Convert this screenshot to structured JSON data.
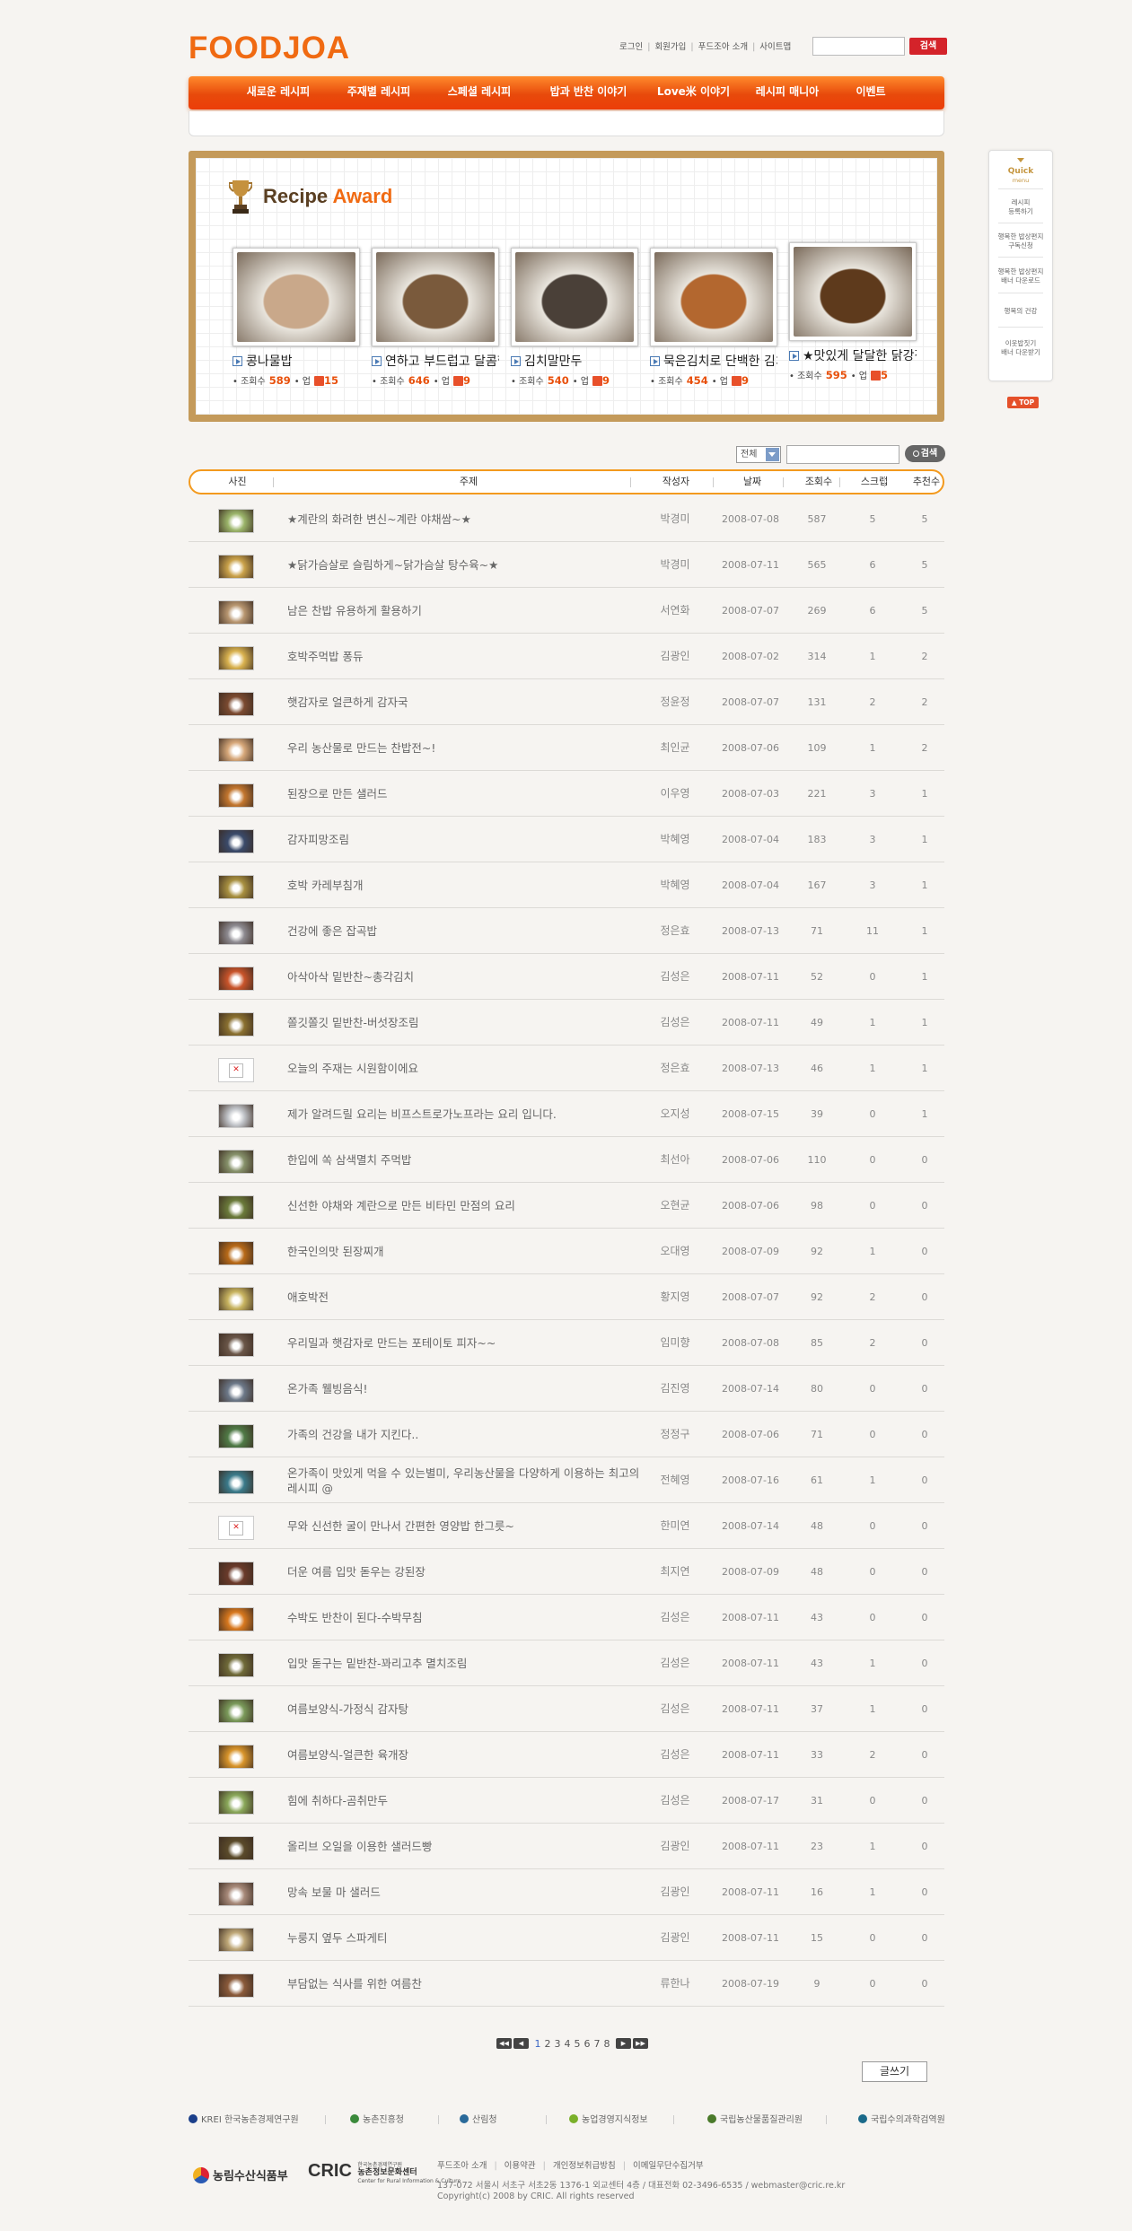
{
  "header": {
    "logo": "FOODJOA",
    "links": [
      "로그인",
      "회원가입",
      "푸드조아 소개",
      "사이트맵"
    ],
    "search_button": "검색"
  },
  "nav": {
    "items": [
      "새로운 레시피",
      "주재별 레시피",
      "스페셜 레시피",
      "밥과 반찬 이야기",
      "Love米 이야기",
      "레시피 매니아",
      "이벤트"
    ]
  },
  "award": {
    "title_part1": "Recipe",
    "title_part2": "Award",
    "views_label": "조회수",
    "scrap_label": "업",
    "items": [
      {
        "title": "콩나물밥",
        "views": "589",
        "scraps": "15",
        "color": "#c9a88a"
      },
      {
        "title": "연하고 부드럽고 달콤한 소갈비찜",
        "views": "646",
        "scraps": "9",
        "color": "#7a5a3c"
      },
      {
        "title": "김치말만두",
        "views": "540",
        "scraps": "9",
        "color": "#4a4038"
      },
      {
        "title": "묵은김치로 단백한 김치찌개",
        "views": "454",
        "scraps": "9",
        "color": "#b3672f"
      },
      {
        "title": "★맛있게 달달한 닭강정",
        "views": "595",
        "scraps": "5",
        "color": "#5e3a1c"
      }
    ]
  },
  "quick": {
    "title_line1": "Quick",
    "title_line2": "menu",
    "items": [
      "레시피\n등록하기",
      "행복한 밥상편지\n구독신청",
      "행복한 밥상편지\n배너 다운로드",
      "행복의 건강",
      "이웃밥짓기\n배너 다운받기"
    ],
    "top_label": "▲ TOP"
  },
  "search": {
    "select_value": "전체",
    "button": "검색"
  },
  "table": {
    "headers": [
      "사진",
      "주제",
      "작성자",
      "날짜",
      "조회수",
      "스크랩",
      "추천수"
    ],
    "rows": [
      {
        "subject": "★계란의 화려한 변신~계란 야채쌈~★",
        "author": "박경미",
        "date": "2008-07-08",
        "views": "587",
        "scraps": "5",
        "recs": "5",
        "thumb": "#9bb56a"
      },
      {
        "subject": "★닭가슴살로 슬림하게~닭가슴살 탕수육~★",
        "author": "박경미",
        "date": "2008-07-11",
        "views": "565",
        "scraps": "6",
        "recs": "5",
        "thumb": "#caa24a"
      },
      {
        "subject": "남은 찬밥 유용하게 활용하기",
        "author": "서연화",
        "date": "2008-07-07",
        "views": "269",
        "scraps": "6",
        "recs": "5",
        "thumb": "#b89670"
      },
      {
        "subject": "호박주먹밥 퐁듀",
        "author": "김광인",
        "date": "2008-07-02",
        "views": "314",
        "scraps": "1",
        "recs": "2",
        "thumb": "#d9b24f"
      },
      {
        "subject": "햇감자로 얼큰하게 감자국",
        "author": "정윤정",
        "date": "2008-07-07",
        "views": "131",
        "scraps": "2",
        "recs": "2",
        "thumb": "#7b4a30"
      },
      {
        "subject": "우리 농산물로 만드는 찬밥전~!",
        "author": "최인균",
        "date": "2008-07-06",
        "views": "109",
        "scraps": "1",
        "recs": "2",
        "thumb": "#d7a87a"
      },
      {
        "subject": "된장으로 만든 샐러드",
        "author": "이우영",
        "date": "2008-07-03",
        "views": "221",
        "scraps": "3",
        "recs": "1",
        "thumb": "#c3762e"
      },
      {
        "subject": "감자피망조림",
        "author": "박혜영",
        "date": "2008-07-04",
        "views": "183",
        "scraps": "3",
        "recs": "1",
        "thumb": "#3a4a6a"
      },
      {
        "subject": "호박 카레부침개",
        "author": "박혜영",
        "date": "2008-07-04",
        "views": "167",
        "scraps": "3",
        "recs": "1",
        "thumb": "#a89040"
      },
      {
        "subject": "건강에 좋은 잡곡밥",
        "author": "정은효",
        "date": "2008-07-13",
        "views": "71",
        "scraps": "11",
        "recs": "1",
        "thumb": "#8d8a90"
      },
      {
        "subject": "아삭아삭 밑반찬~총각김치",
        "author": "김성은",
        "date": "2008-07-11",
        "views": "52",
        "scraps": "0",
        "recs": "1",
        "thumb": "#c9542a"
      },
      {
        "subject": "쫄깃쫄깃 밑반찬-버섯장조림",
        "author": "김성은",
        "date": "2008-07-11",
        "views": "49",
        "scraps": "1",
        "recs": "1",
        "thumb": "#8a7030"
      },
      {
        "subject": "오늘의 주재는 시원함이에요",
        "author": "정은효",
        "date": "2008-07-13",
        "views": "46",
        "scraps": "1",
        "recs": "1",
        "thumb": "broken"
      },
      {
        "subject": "제가 알려드릴 요리는 비프스트로가노프라는 요리 입니다.",
        "author": "오지성",
        "date": "2008-07-15",
        "views": "39",
        "scraps": "0",
        "recs": "1",
        "thumb": "#c0c3c8"
      },
      {
        "subject": "한입에 쏙 삼색멸치 주먹밥",
        "author": "최선아",
        "date": "2008-07-06",
        "views": "110",
        "scraps": "0",
        "recs": "0",
        "thumb": "#86916a"
      },
      {
        "subject": "신선한 야채와 계란으로 만든 비타민 만점의 요리",
        "author": "오현균",
        "date": "2008-07-06",
        "views": "98",
        "scraps": "0",
        "recs": "0",
        "thumb": "#6a7a3a"
      },
      {
        "subject": "한국인의맛 된장찌개",
        "author": "오대영",
        "date": "2008-07-09",
        "views": "92",
        "scraps": "1",
        "recs": "0",
        "thumb": "#b86a18"
      },
      {
        "subject": "애호박전",
        "author": "황지영",
        "date": "2008-07-07",
        "views": "92",
        "scraps": "2",
        "recs": "0",
        "thumb": "#c8b460"
      },
      {
        "subject": "우리밀과 햇감자로 만드는 포테이토 피자~~",
        "author": "임미향",
        "date": "2008-07-08",
        "views": "85",
        "scraps": "2",
        "recs": "0",
        "thumb": "#6a5648"
      },
      {
        "subject": "온가족 웰빙음식!",
        "author": "김진영",
        "date": "2008-07-14",
        "views": "80",
        "scraps": "0",
        "recs": "0",
        "thumb": "#6c7888"
      },
      {
        "subject": "가족의 건강을 내가 지킨다..",
        "author": "정정구",
        "date": "2008-07-06",
        "views": "71",
        "scraps": "0",
        "recs": "0",
        "thumb": "#4f7a46"
      },
      {
        "subject": "온가족이 맛있게 먹을 수 있는별미, 우리농산물을 다양하게 이용하는 최고의 레시피 @",
        "author": "전혜영",
        "date": "2008-07-16",
        "views": "61",
        "scraps": "1",
        "recs": "0",
        "thumb": "#3a7a8a"
      },
      {
        "subject": "무와 신선한 굴이 만나서 간편한 영양밥 한그릇~",
        "author": "한미연",
        "date": "2008-07-14",
        "views": "48",
        "scraps": "0",
        "recs": "0",
        "thumb": "broken"
      },
      {
        "subject": "더운 여름 입맛 돋우는 강된장",
        "author": "최지연",
        "date": "2008-07-09",
        "views": "48",
        "scraps": "0",
        "recs": "0",
        "thumb": "#6a3a2a"
      },
      {
        "subject": "수박도 반찬이 된다-수박무침",
        "author": "김성은",
        "date": "2008-07-11",
        "views": "43",
        "scraps": "0",
        "recs": "0",
        "thumb": "#d8781e"
      },
      {
        "subject": "입맛 돋구는 밑반찬-꽈리고추 멸치조림",
        "author": "김성은",
        "date": "2008-07-11",
        "views": "43",
        "scraps": "1",
        "recs": "0",
        "thumb": "#6f6a38"
      },
      {
        "subject": "여름보양식-가정식 감자탕",
        "author": "김성은",
        "date": "2008-07-11",
        "views": "37",
        "scraps": "1",
        "recs": "0",
        "thumb": "#7a9a5a"
      },
      {
        "subject": "여름보양식-얼큰한 육개장",
        "author": "김성은",
        "date": "2008-07-11",
        "views": "33",
        "scraps": "2",
        "recs": "0",
        "thumb": "#d8942a"
      },
      {
        "subject": "힘에 취하다-곰취만두",
        "author": "김성은",
        "date": "2008-07-17",
        "views": "31",
        "scraps": "0",
        "recs": "0",
        "thumb": "#8aa85a"
      },
      {
        "subject": "올리브 오일을 이용한 샐러드빵",
        "author": "김광인",
        "date": "2008-07-11",
        "views": "23",
        "scraps": "1",
        "recs": "0",
        "thumb": "#5a4a2a"
      },
      {
        "subject": "망속 보물 마 샐러드",
        "author": "김광인",
        "date": "2008-07-11",
        "views": "16",
        "scraps": "1",
        "recs": "0",
        "thumb": "#a88a7a"
      },
      {
        "subject": "누룽지 옆두 스파게티",
        "author": "김광인",
        "date": "2008-07-11",
        "views": "15",
        "scraps": "0",
        "recs": "0",
        "thumb": "#bfa878"
      },
      {
        "subject": "부담없는 식사를 위한 여름찬",
        "author": "류한나",
        "date": "2008-07-19",
        "views": "9",
        "scraps": "0",
        "recs": "0",
        "thumb": "#8a5a3a"
      }
    ]
  },
  "pagination": {
    "first": "◀◀",
    "prev": "◀",
    "pages": [
      "1",
      "2",
      "3",
      "4",
      "5",
      "6",
      "7",
      "8"
    ],
    "next": "▶",
    "last": "▶▶"
  },
  "write_button": "글쓰기",
  "footer": {
    "partners": [
      {
        "name": "KREI 한국농촌경제연구원",
        "color": "#1b3f8a"
      },
      {
        "name": "농촌진흥청",
        "color": "#3b8a3b"
      },
      {
        "name": "산림청",
        "color": "#2a6a9a"
      },
      {
        "name": "농업경영지식정보",
        "color": "#7ab02a"
      },
      {
        "name": "국립농산물품질관리원",
        "color": "#4a7a2a"
      },
      {
        "name": "국립수의과학검역원",
        "color": "#1a6a8a"
      }
    ],
    "logo1": "농림수산식품부",
    "logo2_main": "CRIC",
    "logo2_sub1": "한국농촌경제연구원",
    "logo2_sub2": "농촌정보문화센터",
    "logo2_sub3": "Center for Rural Information & Culture",
    "links": [
      "푸드조아 소개",
      "이용약관",
      "개인정보취급방침",
      "이메일무단수집거부"
    ],
    "address": "137-072 서울시 서초구 서초2동 1376-1 외교센터 4층 / 대표전화 02-3496-6535 / webmaster@cric.re.kr",
    "copyright": "Copyright(c) 2008 by CRIC. All rights reserved"
  }
}
